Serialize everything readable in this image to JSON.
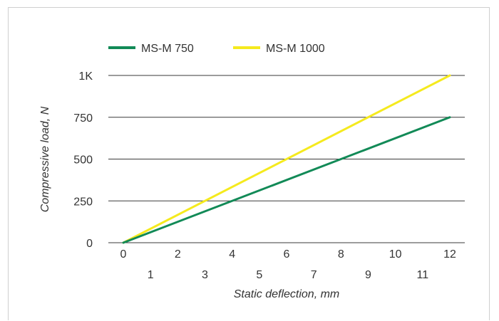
{
  "chart_data": {
    "type": "line",
    "title": "",
    "xlabel": "Static deflection, mm",
    "ylabel": "Compressive load, N",
    "xlim": [
      0,
      12
    ],
    "ylim": [
      0,
      1000
    ],
    "grid": "horizontal",
    "legend_position": "top-left",
    "x_ticks_upper": [
      "0",
      "2",
      "4",
      "6",
      "8",
      "10",
      "12"
    ],
    "x_ticks_lower": [
      "1",
      "3",
      "5",
      "7",
      "9",
      "11"
    ],
    "y_ticks": [
      "0",
      "250",
      "500",
      "750",
      "1K"
    ],
    "series": [
      {
        "name": "MS-M 750",
        "color": "#128a57",
        "x": [
          0,
          12
        ],
        "y": [
          0,
          750
        ]
      },
      {
        "name": "MS-M 1000",
        "color": "#f5ea1e",
        "x": [
          0,
          12
        ],
        "y": [
          0,
          1000
        ]
      }
    ]
  }
}
